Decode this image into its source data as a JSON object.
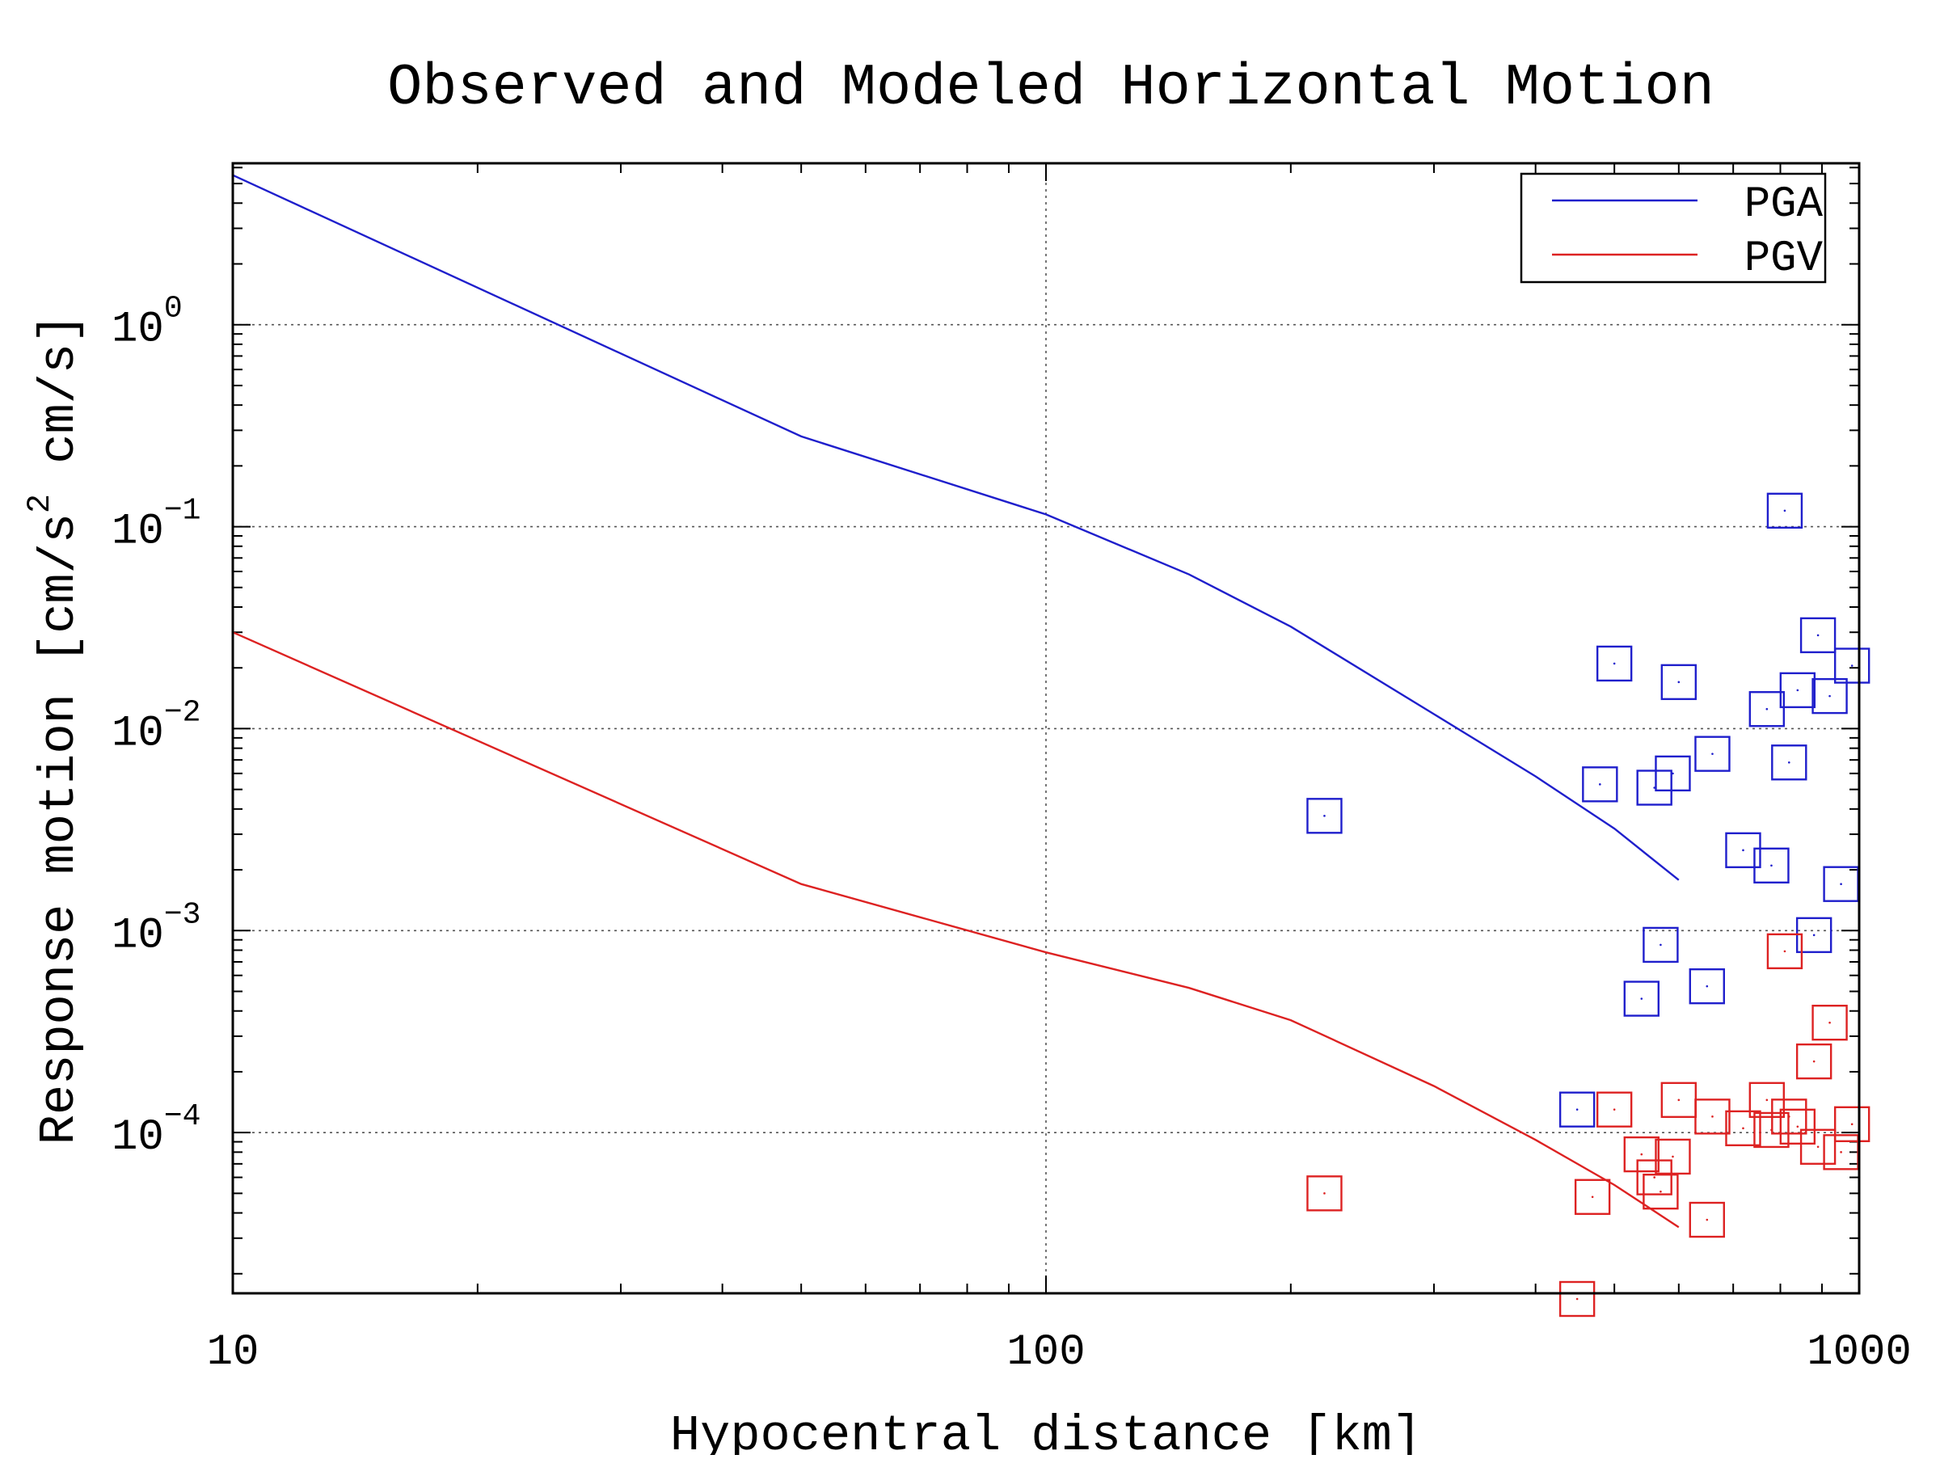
{
  "chart_data": {
    "type": "scatter",
    "title": "Observed and Modeled Horizontal Motion",
    "xlabel": "Hypocentral distance [km]",
    "ylabel_parts": {
      "prefix": "Response motion [cm/s",
      "superscript": "2",
      "suffix": " cm/s]"
    },
    "x_scale": "log",
    "y_scale": "log",
    "xlim": [
      10,
      1000
    ],
    "ylim": [
      1.6e-05,
      6.3
    ],
    "x_ticks": [
      {
        "value": 10,
        "label": "10"
      },
      {
        "value": 100,
        "label": "100"
      },
      {
        "value": 1000,
        "label": "1000"
      }
    ],
    "y_ticks": [
      {
        "value": 1,
        "base": "10",
        "exp": "0"
      },
      {
        "value": 0.1,
        "base": "10",
        "exp": "−1"
      },
      {
        "value": 0.01,
        "base": "10",
        "exp": "−2"
      },
      {
        "value": 0.001,
        "base": "10",
        "exp": "−3"
      },
      {
        "value": 0.0001,
        "base": "10",
        "exp": "−4"
      }
    ],
    "grid": true,
    "legend_position": "top-right",
    "colors": {
      "PGA": "#1f1fcc",
      "PGV": "#dd2222"
    },
    "model_lines": [
      {
        "name": "PGA",
        "color": "#1f1fcc",
        "x": [
          10,
          50,
          100,
          150,
          200,
          300,
          400,
          500,
          600
        ],
        "y": [
          5.5,
          0.28,
          0.115,
          0.058,
          0.032,
          0.0118,
          0.0058,
          0.0032,
          0.00178
        ]
      },
      {
        "name": "PGV",
        "color": "#dd2222",
        "x": [
          10,
          50,
          100,
          150,
          200,
          300,
          400,
          500,
          600
        ],
        "y": [
          0.03,
          0.0017,
          0.00078,
          0.00052,
          0.00036,
          0.00017,
          9.2e-05,
          5.5e-05,
          3.4e-05
        ]
      }
    ],
    "observations": [
      {
        "name": "PGA",
        "color": "#1f1fcc",
        "points": [
          [
            220,
            0.0037
          ],
          [
            450,
            0.00013
          ],
          [
            480,
            0.0053
          ],
          [
            500,
            0.021
          ],
          [
            540,
            0.00046
          ],
          [
            560,
            0.0051
          ],
          [
            570,
            0.00085
          ],
          [
            590,
            0.006
          ],
          [
            600,
            0.017
          ],
          [
            650,
            0.00053
          ],
          [
            660,
            0.0075
          ],
          [
            720,
            0.0025
          ],
          [
            770,
            0.0125
          ],
          [
            780,
            0.0021
          ],
          [
            810,
            0.12
          ],
          [
            820,
            0.0068
          ],
          [
            840,
            0.0155
          ],
          [
            880,
            0.00095
          ],
          [
            890,
            0.029
          ],
          [
            920,
            0.0145
          ],
          [
            950,
            0.0017
          ],
          [
            980,
            0.0205
          ]
        ]
      },
      {
        "name": "PGV",
        "color": "#dd2222",
        "points": [
          [
            220,
            5e-05
          ],
          [
            450,
            1.5e-05
          ],
          [
            470,
            4.8e-05
          ],
          [
            500,
            0.00013
          ],
          [
            540,
            7.8e-05
          ],
          [
            560,
            6e-05
          ],
          [
            570,
            5.1e-05
          ],
          [
            590,
            7.6e-05
          ],
          [
            600,
            0.000145
          ],
          [
            650,
            3.7e-05
          ],
          [
            660,
            0.00012
          ],
          [
            720,
            0.000105
          ],
          [
            770,
            0.000145
          ],
          [
            780,
            0.000103
          ],
          [
            810,
            0.00079
          ],
          [
            820,
            0.00012
          ],
          [
            840,
            0.000107
          ],
          [
            880,
            0.000225
          ],
          [
            890,
            8.5e-05
          ],
          [
            920,
            0.00035
          ],
          [
            950,
            8e-05
          ],
          [
            980,
            0.00011
          ]
        ]
      }
    ]
  }
}
